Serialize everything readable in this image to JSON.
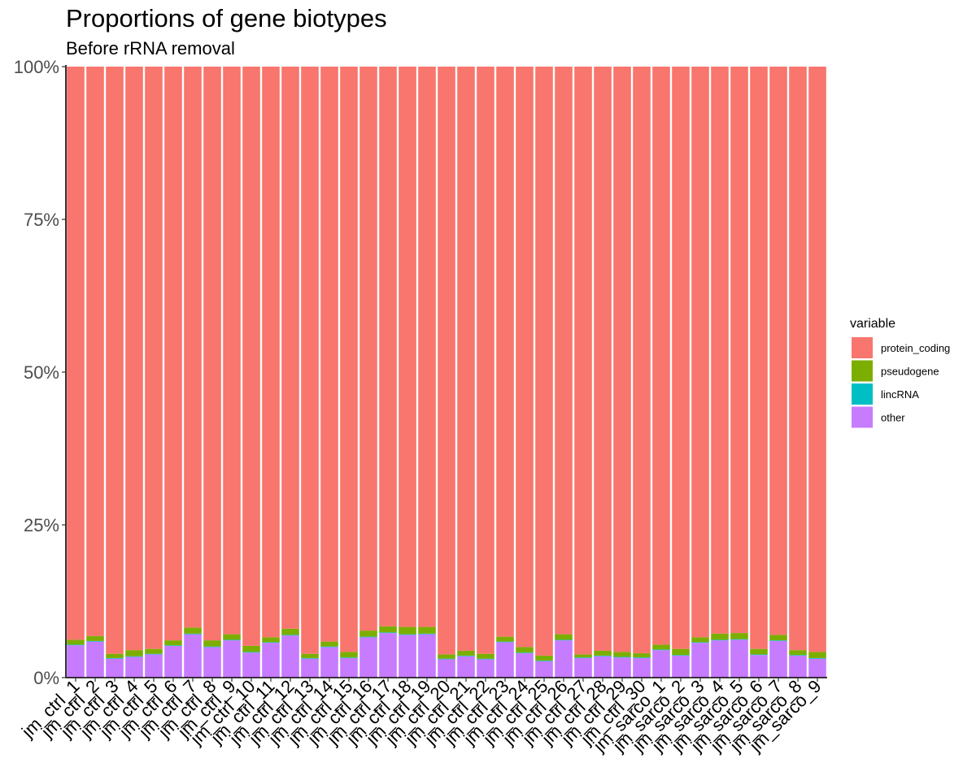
{
  "chart_data": {
    "type": "bar",
    "stacked": true,
    "normalized": true,
    "title": "Proportions of gene biotypes",
    "subtitle": "Before rRNA removal",
    "xlabel": "",
    "ylabel": "",
    "ylim": [
      0,
      1
    ],
    "yticks": [
      "0%",
      "25%",
      "50%",
      "75%",
      "100%"
    ],
    "grid": false,
    "legend": {
      "title": "variable",
      "position": "right"
    },
    "categories": [
      "jm_ctrl_1",
      "jm_ctrl_2",
      "jm_ctrl_3",
      "jm_ctrl_4",
      "jm_ctrl_5",
      "jm_ctrl_6",
      "jm_ctrl_7",
      "jm_ctrl_8",
      "jm_ctrl_9",
      "jm_ctrl_10",
      "jm_ctrl_11",
      "jm_ctrl_12",
      "jm_ctrl_13",
      "jm_ctrl_14",
      "jm_ctrl_15",
      "jm_ctrl_16",
      "jm_ctrl_17",
      "jm_ctrl_18",
      "jm_ctrl_19",
      "jm_ctrl_20",
      "jm_ctrl_21",
      "jm_ctrl_22",
      "jm_ctrl_23",
      "jm_ctrl_24",
      "jm_ctrl_25",
      "jm_ctrl_26",
      "jm_ctrl_27",
      "jm_ctrl_28",
      "jm_ctrl_29",
      "jm_ctrl_30",
      "jm_sarco_1",
      "jm_sarco_2",
      "jm_sarco_3",
      "jm_sarco_4",
      "jm_sarco_5",
      "jm_sarco_6",
      "jm_sarco_7",
      "jm_sarco_8",
      "jm_sarco_9"
    ],
    "series": [
      {
        "name": "protein_coding",
        "color": "#F8766D",
        "values": [
          0.938,
          0.932,
          0.961,
          0.955,
          0.953,
          0.939,
          0.918,
          0.939,
          0.929,
          0.948,
          0.934,
          0.92,
          0.961,
          0.941,
          0.958,
          0.923,
          0.916,
          0.917,
          0.917,
          0.962,
          0.956,
          0.961,
          0.933,
          0.95,
          0.964,
          0.929,
          0.962,
          0.956,
          0.958,
          0.96,
          0.946,
          0.953,
          0.934,
          0.928,
          0.927,
          0.953,
          0.93,
          0.955,
          0.958
        ]
      },
      {
        "name": "pseudogene",
        "color": "#7CAE00",
        "values": [
          0.008,
          0.008,
          0.007,
          0.01,
          0.008,
          0.008,
          0.01,
          0.01,
          0.009,
          0.01,
          0.008,
          0.01,
          0.007,
          0.008,
          0.009,
          0.01,
          0.01,
          0.012,
          0.011,
          0.007,
          0.008,
          0.008,
          0.008,
          0.009,
          0.008,
          0.009,
          0.005,
          0.008,
          0.008,
          0.007,
          0.008,
          0.01,
          0.008,
          0.01,
          0.01,
          0.009,
          0.009,
          0.008,
          0.01
        ]
      },
      {
        "name": "lincRNA",
        "color": "#00BFC4",
        "values": [
          0.001,
          0.001,
          0.001,
          0.001,
          0.001,
          0.001,
          0.001,
          0.001,
          0.001,
          0.001,
          0.001,
          0.001,
          0.001,
          0.001,
          0.001,
          0.001,
          0.001,
          0.001,
          0.001,
          0.001,
          0.001,
          0.001,
          0.001,
          0.001,
          0.001,
          0.001,
          0.001,
          0.001,
          0.001,
          0.001,
          0.001,
          0.001,
          0.001,
          0.001,
          0.001,
          0.001,
          0.001,
          0.001,
          0.001
        ]
      },
      {
        "name": "other",
        "color": "#C77CFF",
        "values": [
          0.053,
          0.059,
          0.031,
          0.034,
          0.038,
          0.052,
          0.071,
          0.05,
          0.061,
          0.041,
          0.057,
          0.069,
          0.031,
          0.05,
          0.032,
          0.066,
          0.073,
          0.07,
          0.071,
          0.03,
          0.035,
          0.03,
          0.058,
          0.04,
          0.027,
          0.061,
          0.032,
          0.035,
          0.033,
          0.032,
          0.045,
          0.036,
          0.057,
          0.061,
          0.062,
          0.037,
          0.06,
          0.036,
          0.031
        ]
      }
    ]
  }
}
